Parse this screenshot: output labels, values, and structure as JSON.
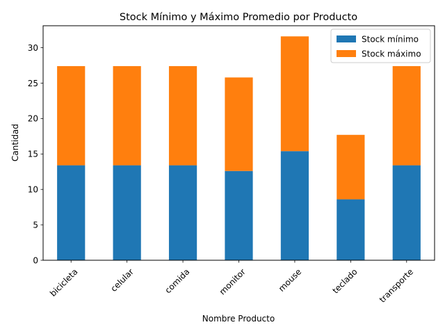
{
  "chart_data": {
    "type": "bar",
    "stacked": true,
    "title": "Stock Mínimo y Máximo Promedio por Producto",
    "xlabel": "Nombre Producto",
    "ylabel": "Cantidad",
    "categories": [
      "bicicleta",
      "celular",
      "comida",
      "monitor",
      "mouse",
      "teclado",
      "transporte"
    ],
    "series": [
      {
        "name": "Stock mínimo",
        "color": "#1f77b4",
        "values": [
          13.4,
          13.4,
          13.4,
          12.6,
          15.4,
          8.6,
          13.4
        ]
      },
      {
        "name": "Stock máximo",
        "color": "#ff7f0e",
        "values": [
          14.0,
          14.0,
          14.0,
          13.2,
          16.2,
          9.1,
          14.0
        ]
      }
    ],
    "ylim": [
      0,
      33.1
    ],
    "yticks": [
      0,
      5,
      10,
      15,
      20,
      25,
      30
    ],
    "grid": false,
    "legend_position": "top-right",
    "x_tick_rotation_deg": 45
  }
}
